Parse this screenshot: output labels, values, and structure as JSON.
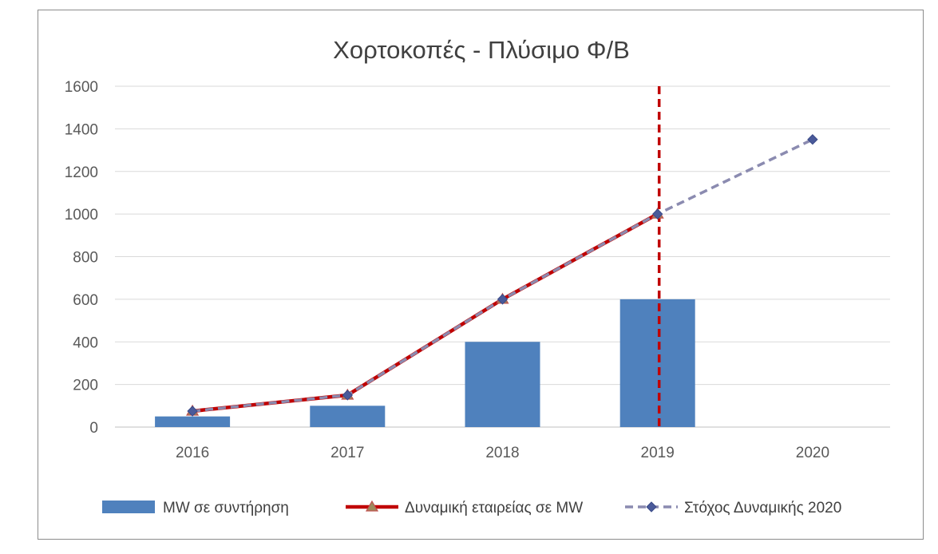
{
  "chart_data": {
    "type": "bar",
    "title": "Χορτοκοπές - Πλύσιμο Φ/Β",
    "xlabel": "",
    "ylabel": "",
    "categories": [
      "2016",
      "2017",
      "2018",
      "2019",
      "2020"
    ],
    "ylim": [
      0,
      1600
    ],
    "yticks": [
      0,
      200,
      400,
      600,
      800,
      1000,
      1200,
      1400,
      1600
    ],
    "grid": true,
    "legend_position": "bottom",
    "series": [
      {
        "name": "MW σε συντήρηση",
        "kind": "bar",
        "color": "#4f81bd",
        "values": [
          50,
          100,
          400,
          600,
          null
        ]
      },
      {
        "name": "Δυναμική εταιρείας σε MW",
        "kind": "line",
        "marker": "triangle",
        "color": "#c00000",
        "marker_color": "#9c8a5c",
        "values": [
          75,
          150,
          600,
          1000,
          null
        ]
      },
      {
        "name": "Στόχος Δυναμικής 2020",
        "kind": "line",
        "marker": "diamond",
        "dashed": true,
        "color": "#8b8bb0",
        "marker_color": "#4a5a9a",
        "values": [
          75,
          150,
          600,
          1000,
          1350
        ]
      }
    ],
    "annotations": [
      {
        "kind": "vertical-dashed-line",
        "at_category": "2019",
        "color": "#c00000"
      }
    ]
  }
}
